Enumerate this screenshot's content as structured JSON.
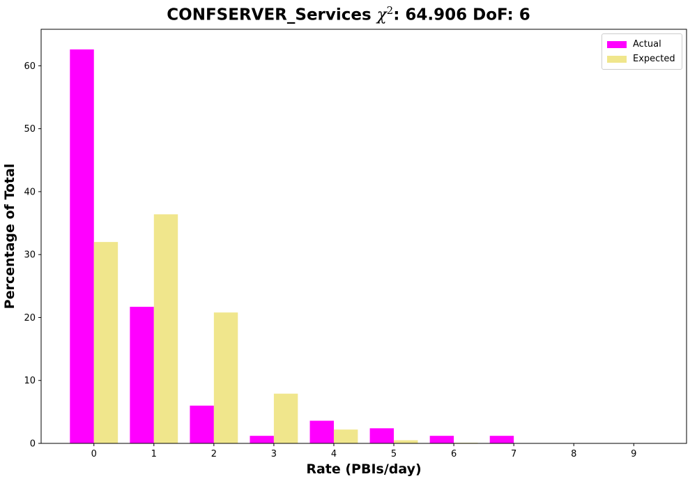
{
  "chart_data": {
    "type": "bar",
    "title": {
      "prefix": "CONFSERVER_Services ",
      "symbol": "χ",
      "superscript": "2",
      "suffix": ": 64.906 DoF: 6"
    },
    "xlabel": "Rate (PBIs/day)",
    "ylabel": "Percentage of Total",
    "categories": [
      "0",
      "1",
      "2",
      "3",
      "4",
      "5",
      "6",
      "7",
      "8",
      "9"
    ],
    "x": [
      0,
      1,
      2,
      3,
      4,
      5,
      6,
      7,
      8,
      9
    ],
    "series": [
      {
        "name": "Actual",
        "color": "#ff00ff",
        "values": [
          62.6,
          21.7,
          6.0,
          1.2,
          3.6,
          2.4,
          1.2,
          1.2,
          0.0,
          0.0
        ]
      },
      {
        "name": "Expected",
        "color": "#f0e68c",
        "values": [
          32.0,
          36.4,
          20.8,
          7.9,
          2.2,
          0.5,
          0.1,
          0.0,
          0.0,
          0.0
        ]
      }
    ],
    "xlim": [
      -0.88,
      9.88
    ],
    "ylim": [
      0,
      65.8
    ],
    "yticks": [
      0,
      10,
      20,
      30,
      40,
      50,
      60
    ],
    "grid": false,
    "legend_position": "top-right"
  }
}
